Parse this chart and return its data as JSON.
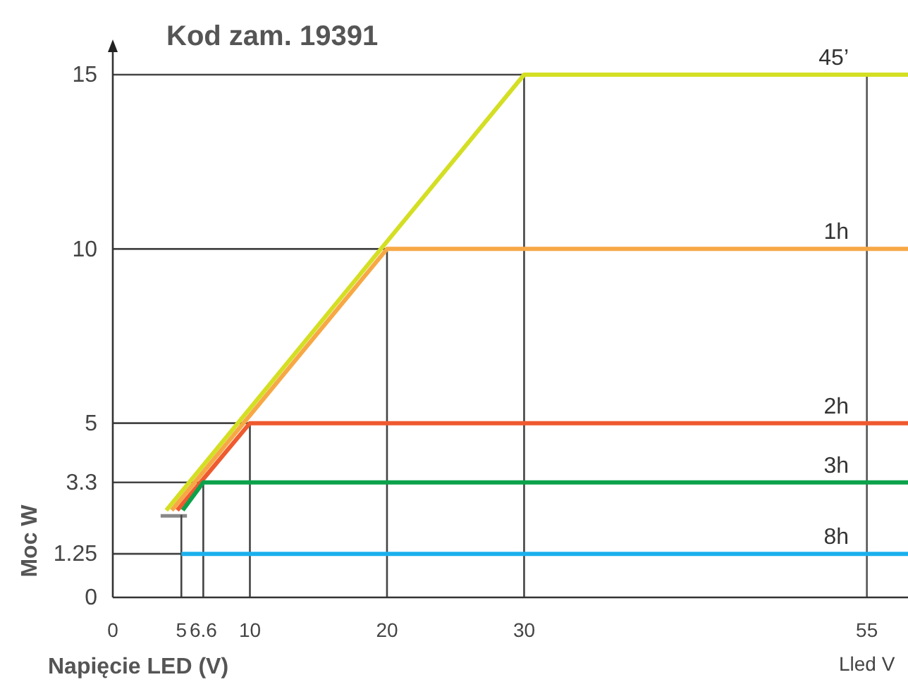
{
  "chart_data": {
    "type": "line",
    "title": "Kod zam. 19391",
    "xlabel": "Napięcie LED (V)",
    "ylabel": "Moc W",
    "annotations": [
      "Lled V"
    ],
    "xlim": [
      0,
      58
    ],
    "xticks": [
      0,
      5,
      6.6,
      10,
      20,
      30,
      55
    ],
    "ylim": [
      0,
      15
    ],
    "yticks": [
      0,
      1.25,
      3.3,
      5,
      10,
      15
    ],
    "ref_lines": [
      {
        "axis": "x",
        "value": 55
      }
    ],
    "series": [
      {
        "color": "#444444",
        "x": [
          0,
          30,
          30
        ],
        "values": [
          15,
          15,
          0
        ]
      },
      {
        "color": "#444444",
        "x": [
          0,
          20,
          20
        ],
        "values": [
          10,
          10,
          0
        ]
      },
      {
        "color": "#444444",
        "x": [
          0,
          10,
          10
        ],
        "values": [
          5,
          5,
          0
        ]
      },
      {
        "color": "#444444",
        "x": [
          0,
          6.6,
          6.6
        ],
        "values": [
          3.3,
          3.3,
          0
        ]
      },
      {
        "color": "#444444",
        "x": [
          0,
          5,
          5,
          5
        ],
        "values": [
          1.25,
          1.25,
          2.35,
          0
        ]
      },
      {
        "name": "45’",
        "color": "#d4df24",
        "x": [
          3.9,
          30,
          58
        ],
        "values": [
          2.5,
          15,
          15
        ]
      },
      {
        "name": "1h",
        "color": "#f7a845",
        "x": [
          4.3,
          20,
          58
        ],
        "values": [
          2.5,
          10,
          10
        ]
      },
      {
        "name": "2h",
        "color": "#ef5a2f",
        "x": [
          4.7,
          10,
          58
        ],
        "values": [
          2.5,
          5,
          5
        ]
      },
      {
        "name": "3h",
        "color": "#0ba24b",
        "x": [
          5.1,
          6.6,
          58
        ],
        "values": [
          2.5,
          3.3,
          3.3
        ]
      },
      {
        "name": "8h",
        "color": "#1bb0ec",
        "x": [
          5,
          58
        ],
        "values": [
          1.25,
          1.25
        ]
      }
    ]
  }
}
